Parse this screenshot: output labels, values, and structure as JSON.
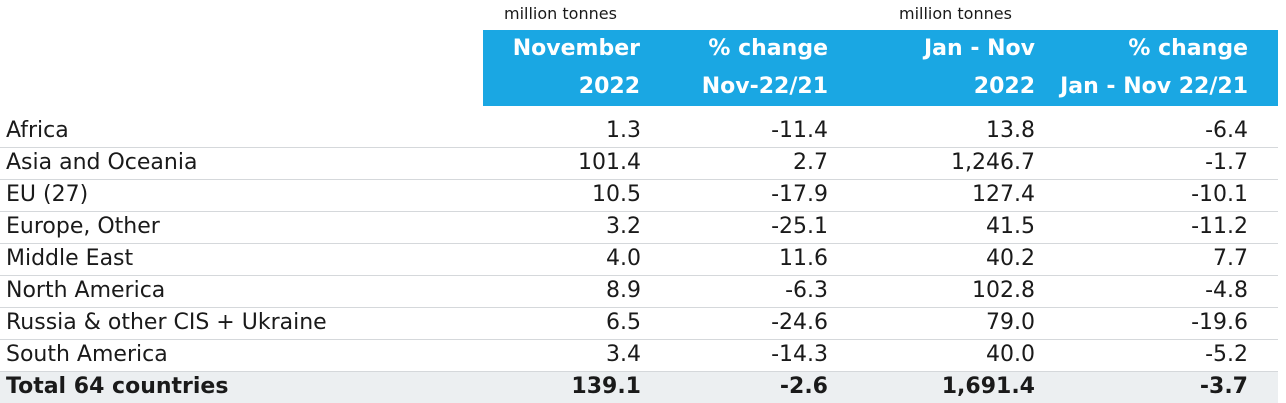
{
  "units": {
    "left": "million tonnes",
    "right": "million tonnes"
  },
  "headers": [
    {
      "line1": "November",
      "line2": "2022"
    },
    {
      "line1": "% change",
      "line2": "Nov-22/21"
    },
    {
      "line1": "Jan - Nov",
      "line2": "2022"
    },
    {
      "line1": "% change",
      "line2": "Jan - Nov 22/21"
    }
  ],
  "chart_data": {
    "type": "table",
    "columns": [
      "November 2022",
      "% change Nov-22/21",
      "Jan - Nov 2022",
      "% change Jan - Nov 22/21"
    ],
    "rows": [
      {
        "region": "Africa",
        "values": [
          "1.3",
          "-11.4",
          "13.8",
          "-6.4"
        ]
      },
      {
        "region": "Asia and Oceania",
        "values": [
          "101.4",
          "2.7",
          "1,246.7",
          "-1.7"
        ]
      },
      {
        "region": "EU (27)",
        "values": [
          "10.5",
          "-17.9",
          "127.4",
          "-10.1"
        ]
      },
      {
        "region": "Europe, Other",
        "values": [
          "3.2",
          "-25.1",
          "41.5",
          "-11.2"
        ]
      },
      {
        "region": "Middle East",
        "values": [
          "4.0",
          "11.6",
          "40.2",
          "7.7"
        ]
      },
      {
        "region": "North America",
        "values": [
          "8.9",
          "-6.3",
          "102.8",
          "-4.8"
        ]
      },
      {
        "region": "Russia & other CIS + Ukraine",
        "values": [
          "6.5",
          "-24.6",
          "79.0",
          "-19.6"
        ]
      },
      {
        "region": "South America",
        "values": [
          "3.4",
          "-14.3",
          "40.0",
          "-5.2"
        ]
      }
    ],
    "total": {
      "region": "Total 64 countries",
      "values": [
        "139.1",
        "-2.6",
        "1,691.4",
        "-3.7"
      ]
    }
  },
  "colors": {
    "header_bg": "#1aa7e3",
    "header_text": "#ffffff",
    "total_bg": "#eceff1",
    "divider": "#d5d8db"
  }
}
